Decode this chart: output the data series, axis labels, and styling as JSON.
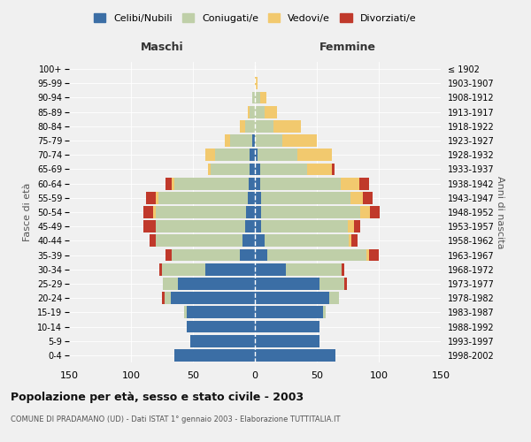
{
  "age_groups": [
    "0-4",
    "5-9",
    "10-14",
    "15-19",
    "20-24",
    "25-29",
    "30-34",
    "35-39",
    "40-44",
    "45-49",
    "50-54",
    "55-59",
    "60-64",
    "65-69",
    "70-74",
    "75-79",
    "80-84",
    "85-89",
    "90-94",
    "95-99",
    "100+"
  ],
  "birth_years": [
    "1998-2002",
    "1993-1997",
    "1988-1992",
    "1983-1987",
    "1978-1982",
    "1973-1977",
    "1968-1972",
    "1963-1967",
    "1958-1962",
    "1953-1957",
    "1948-1952",
    "1943-1947",
    "1938-1942",
    "1933-1937",
    "1928-1932",
    "1923-1927",
    "1918-1922",
    "1913-1917",
    "1908-1912",
    "1903-1907",
    "≤ 1902"
  ],
  "males": {
    "celibe": [
      65,
      52,
      55,
      55,
      68,
      62,
      40,
      12,
      10,
      8,
      7,
      6,
      5,
      4,
      4,
      2,
      0,
      0,
      0,
      0,
      0
    ],
    "coniugato": [
      0,
      0,
      0,
      2,
      5,
      12,
      35,
      55,
      70,
      72,
      73,
      72,
      60,
      32,
      28,
      18,
      8,
      4,
      2,
      0,
      0
    ],
    "vedovo": [
      0,
      0,
      0,
      0,
      0,
      0,
      0,
      0,
      0,
      0,
      2,
      2,
      2,
      2,
      8,
      4,
      4,
      2,
      0,
      0,
      0
    ],
    "divorziato": [
      0,
      0,
      0,
      0,
      2,
      0,
      2,
      5,
      5,
      10,
      8,
      8,
      5,
      0,
      0,
      0,
      0,
      0,
      0,
      0,
      0
    ]
  },
  "females": {
    "nubile": [
      65,
      52,
      52,
      55,
      60,
      52,
      25,
      10,
      8,
      5,
      5,
      5,
      4,
      4,
      2,
      0,
      0,
      0,
      0,
      0,
      0
    ],
    "coniugata": [
      0,
      0,
      0,
      2,
      8,
      20,
      45,
      80,
      68,
      70,
      80,
      72,
      65,
      38,
      32,
      22,
      15,
      8,
      4,
      0,
      0
    ],
    "vedova": [
      0,
      0,
      0,
      0,
      0,
      0,
      0,
      2,
      2,
      5,
      8,
      10,
      15,
      20,
      28,
      28,
      22,
      10,
      5,
      2,
      0
    ],
    "divorziata": [
      0,
      0,
      0,
      0,
      0,
      2,
      2,
      8,
      5,
      5,
      8,
      8,
      8,
      2,
      0,
      0,
      0,
      0,
      0,
      0,
      0
    ]
  },
  "colors": {
    "celibe": "#3B6EA5",
    "coniugato": "#BFCFA8",
    "vedovo": "#F2C96E",
    "divorziato": "#C0392B"
  },
  "legend_labels": [
    "Celibi/Nubili",
    "Coniugati/e",
    "Vedovi/e",
    "Divorziati/e"
  ],
  "xlim": 150,
  "title": "Popolazione per età, sesso e stato civile - 2003",
  "subtitle": "COMUNE DI PRADAMANO (UD) - Dati ISTAT 1° gennaio 2003 - Elaborazione TUTTITALIA.IT",
  "xlabel_left": "Maschi",
  "xlabel_right": "Femmine",
  "ylabel_left": "Fasce di età",
  "ylabel_right": "Anni di nascita",
  "background_color": "#f0f0f0"
}
